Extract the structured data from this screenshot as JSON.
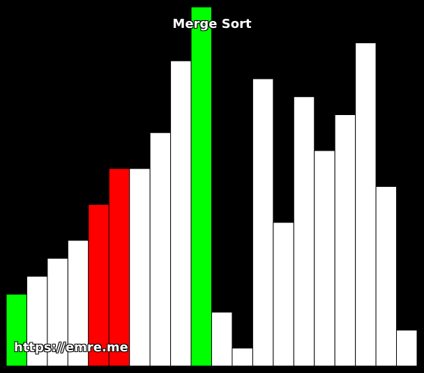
{
  "title": "Merge Sort",
  "watermark": "https://emre.me",
  "colors": {
    "background": "#000000",
    "default": "#ffffff",
    "compare": "#ff0000",
    "active": "#00ff00",
    "outline": "#000000"
  },
  "chart_data": {
    "type": "bar",
    "title": "Merge Sort",
    "ylim": [
      0,
      20
    ],
    "values": [
      4,
      5,
      6,
      7,
      9,
      11,
      11,
      13,
      17,
      20,
      3,
      1,
      16,
      8,
      15,
      12,
      14,
      18,
      10,
      2
    ],
    "states": [
      "active",
      "default",
      "default",
      "default",
      "compare",
      "compare",
      "default",
      "default",
      "default",
      "active",
      "default",
      "default",
      "default",
      "default",
      "default",
      "default",
      "default",
      "default",
      "default",
      "default"
    ]
  }
}
